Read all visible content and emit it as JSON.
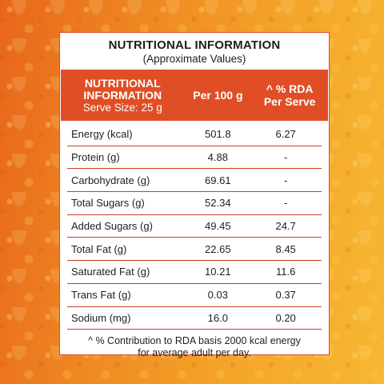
{
  "title": "NUTRITIONAL INFORMATION",
  "subtitle": "(Approximate Values)",
  "header": {
    "col1_line1": "NUTRITIONAL",
    "col1_line2": "INFORMATION",
    "col1_line3": "Serve Size: 25 g",
    "col2": "Per 100 g",
    "col3_line1": "^ % RDA",
    "col3_line2": "Per Serve"
  },
  "rows": [
    {
      "name": "Energy (kcal)",
      "per100": "501.8",
      "rda": "6.27"
    },
    {
      "name": "Protein (g)",
      "per100": "4.88",
      "rda": "-"
    },
    {
      "name": "Carbohydrate (g)",
      "per100": "69.61",
      "rda": "-"
    },
    {
      "name": "Total Sugars (g)",
      "per100": "52.34",
      "rda": "-"
    },
    {
      "name": "Added Sugars (g)",
      "per100": "49.45",
      "rda": "24.7"
    },
    {
      "name": "Total Fat (g)",
      "per100": "22.65",
      "rda": "8.45"
    },
    {
      "name": "Saturated Fat (g)",
      "per100": "10.21",
      "rda": "11.6"
    },
    {
      "name": "Trans Fat (g)",
      "per100": "0.03",
      "rda": "0.37"
    },
    {
      "name": "Sodium (mg)",
      "per100": "16.0",
      "rda": "0.20"
    }
  ],
  "footnote_line1": "^ % Contribution to RDA basis 2000 kcal energy",
  "footnote_line2": "for average adult per day.",
  "colors": {
    "accent": "#e04e25",
    "background_start": "#e8661c",
    "background_end": "#f7b832"
  }
}
